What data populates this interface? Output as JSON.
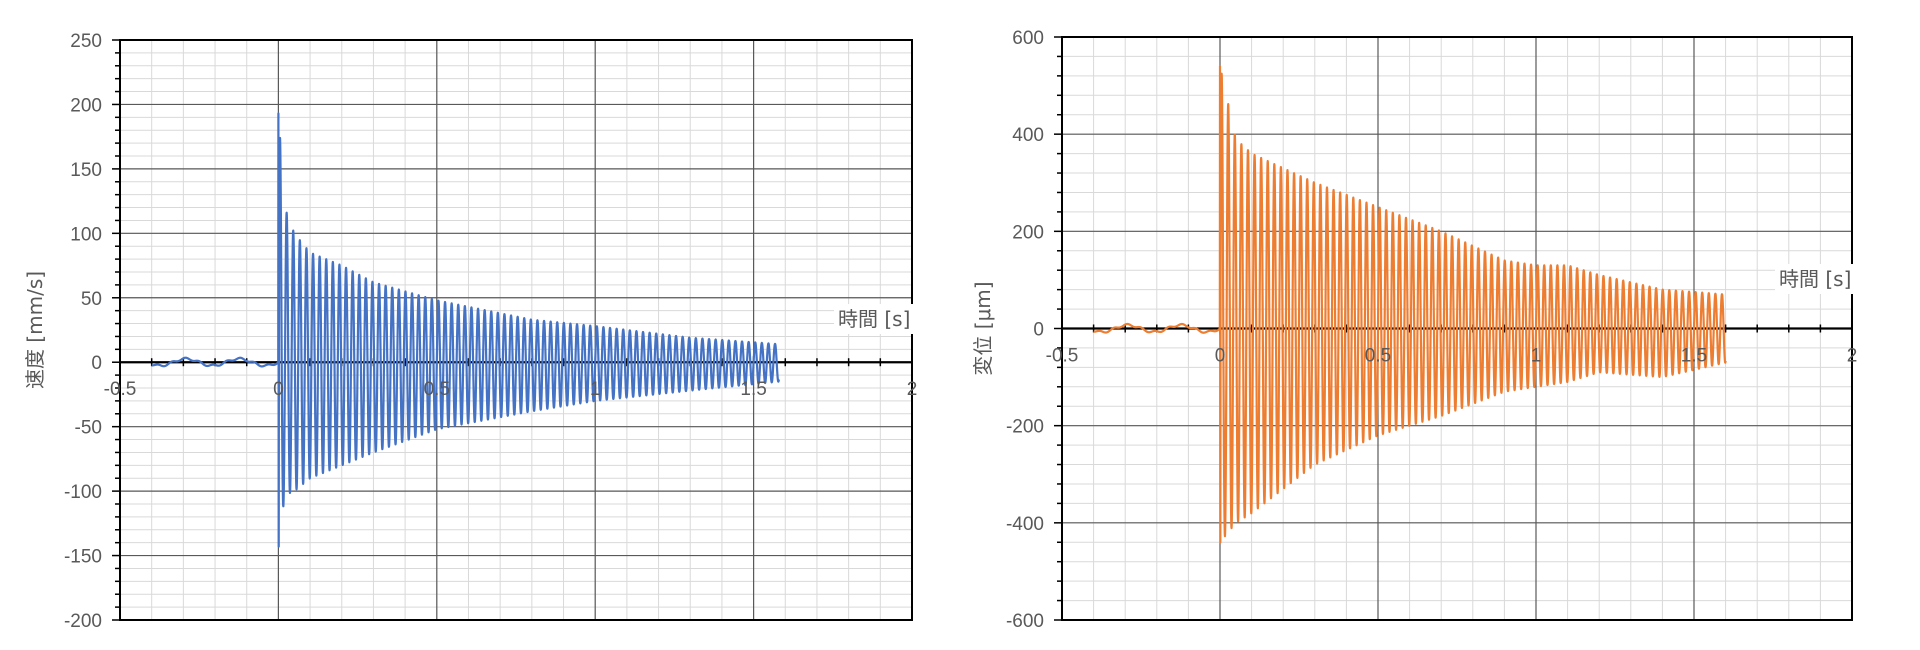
{
  "chart_data": [
    {
      "type": "line",
      "title": "",
      "xlabel": "時間 [s]",
      "ylabel": "速度 [mm/s]",
      "xlim": [
        -0.5,
        2
      ],
      "ylim": [
        -200,
        250
      ],
      "x_major_step": 0.5,
      "y_major_step": 50,
      "x_tick_labels": [
        "-0.5",
        "0",
        "0.5",
        "1",
        "1.5",
        "2"
      ],
      "y_tick_labels": [
        "250",
        "200",
        "150",
        "100",
        "50",
        "0",
        "-50",
        "-100",
        "-150",
        "-200"
      ],
      "grid": true,
      "legend": "none",
      "color": "#4472C4",
      "series": [
        {
          "signal": "decaying-oscillation",
          "pre_start": -0.4,
          "impact_time": 0.0,
          "end": 1.58,
          "frequency_hz": 48,
          "peak_max": 193,
          "peak_min": -143,
          "pos_envelope": [
            [
              0.0,
              193
            ],
            [
              0.02,
              120
            ],
            [
              0.05,
              100
            ],
            [
              0.1,
              85
            ],
            [
              0.2,
              75
            ],
            [
              0.3,
              62
            ],
            [
              0.5,
              48
            ],
            [
              0.8,
              33
            ],
            [
              1.0,
              28
            ],
            [
              1.3,
              19
            ],
            [
              1.58,
              14
            ]
          ],
          "neg_envelope": [
            [
              0.0,
              -143
            ],
            [
              0.02,
              -103
            ],
            [
              0.05,
              -100
            ],
            [
              0.1,
              -90
            ],
            [
              0.2,
              -80
            ],
            [
              0.3,
              -70
            ],
            [
              0.5,
              -52
            ],
            [
              0.8,
              -38
            ],
            [
              1.0,
              -30
            ],
            [
              1.3,
              -22
            ],
            [
              1.58,
              -15
            ]
          ]
        }
      ]
    },
    {
      "type": "line",
      "title": "",
      "xlabel": "時間 [s]",
      "ylabel": "変位 [μm]",
      "xlim": [
        -0.5,
        2
      ],
      "ylim": [
        -600,
        600
      ],
      "x_major_step": 0.5,
      "y_major_step": 200,
      "x_tick_labels": [
        "-0.5",
        "0",
        "0.5",
        "1",
        "1.5",
        "2"
      ],
      "y_tick_labels": [
        "600",
        "400",
        "200",
        "0",
        "-200",
        "-400",
        "-600"
      ],
      "grid": true,
      "legend": "none",
      "color": "#ED7D31",
      "series": [
        {
          "signal": "decaying-oscillation",
          "pre_start": -0.4,
          "impact_time": 0.0,
          "end": 1.6,
          "frequency_hz": 48,
          "peak_max": 540,
          "peak_min": -440,
          "pos_envelope": [
            [
              0.0,
              540
            ],
            [
              0.05,
              390
            ],
            [
              0.1,
              360
            ],
            [
              0.2,
              330
            ],
            [
              0.3,
              300
            ],
            [
              0.5,
              250
            ],
            [
              0.7,
              200
            ],
            [
              0.9,
              140
            ],
            [
              1.0,
              130
            ],
            [
              1.1,
              130
            ],
            [
              1.2,
              110
            ],
            [
              1.4,
              80
            ],
            [
              1.6,
              70
            ]
          ],
          "neg_envelope": [
            [
              0.0,
              -440
            ],
            [
              0.05,
              -400
            ],
            [
              0.1,
              -380
            ],
            [
              0.2,
              -330
            ],
            [
              0.3,
              -280
            ],
            [
              0.5,
              -220
            ],
            [
              0.7,
              -180
            ],
            [
              0.9,
              -130
            ],
            [
              1.0,
              -120
            ],
            [
              1.1,
              -110
            ],
            [
              1.2,
              -90
            ],
            [
              1.4,
              -100
            ],
            [
              1.6,
              -70
            ]
          ]
        }
      ]
    }
  ]
}
